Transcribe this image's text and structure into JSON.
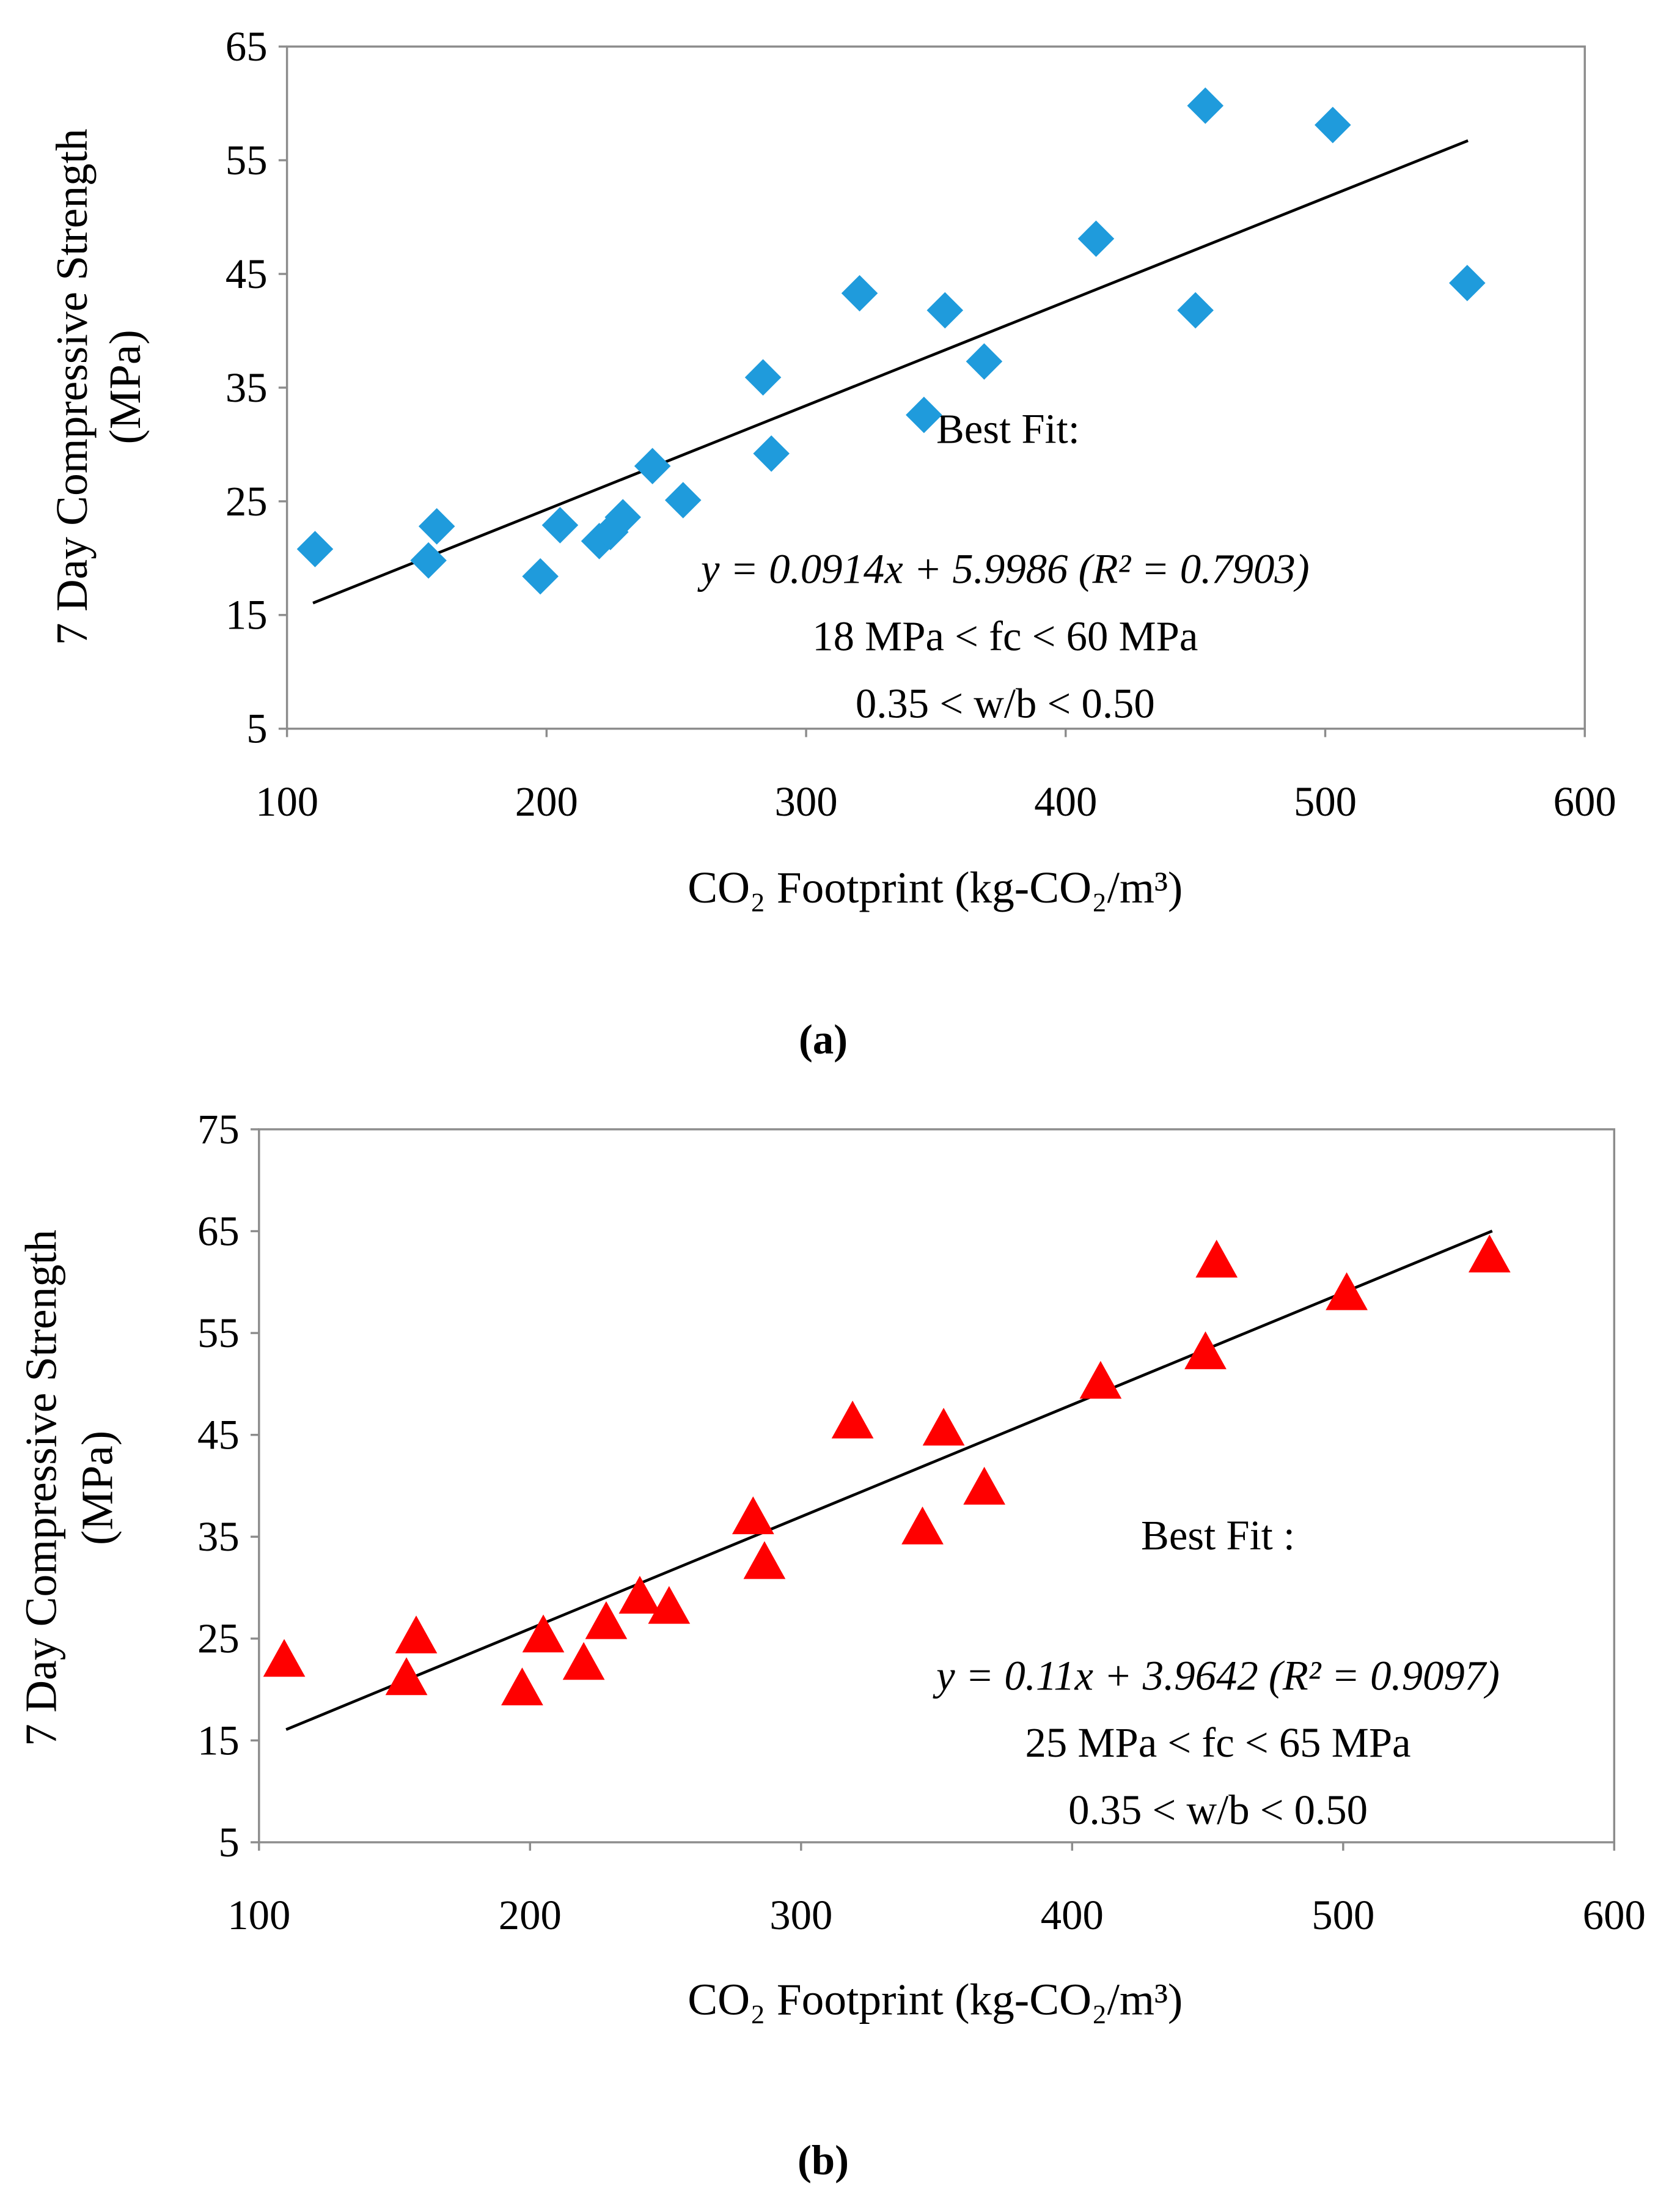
{
  "chart_data": [
    {
      "type": "scatter",
      "panel_label": "a",
      "xlabel": "CO₂ Footprint (kg-CO₂/m³)",
      "ylabel_line1": "7 Day Compressive Strength",
      "ylabel_line2": "(MPa)",
      "xlim": [
        100,
        600
      ],
      "ylim": [
        5,
        65
      ],
      "xticks": [
        100,
        200,
        300,
        400,
        500,
        600
      ],
      "yticks": [
        5,
        15,
        25,
        35,
        45,
        55,
        65
      ],
      "marker": "diamond",
      "color": "#1f9bdc",
      "points": [
        [
          110.8,
          20.8
        ],
        [
          154.5,
          19.8
        ],
        [
          157.7,
          22.8
        ],
        [
          197.6,
          18.4
        ],
        [
          205.2,
          22.9
        ],
        [
          220.3,
          21.5
        ],
        [
          224.6,
          22.3
        ],
        [
          229.4,
          23.6
        ],
        [
          240.8,
          28.1
        ],
        [
          252.6,
          25.1
        ],
        [
          283.4,
          35.9
        ],
        [
          286.6,
          29.2
        ],
        [
          320.6,
          43.3
        ],
        [
          345.4,
          32.6
        ],
        [
          353.5,
          41.8
        ],
        [
          368.6,
          37.3
        ],
        [
          411.7,
          48.1
        ],
        [
          450.0,
          41.8
        ],
        [
          453.8,
          59.8
        ],
        [
          502.9,
          58.1
        ],
        [
          554.7,
          44.2
        ]
      ],
      "fit": {
        "slope": 0.0914,
        "intercept": 5.9986,
        "x_range": [
          110,
          555
        ]
      },
      "annotation": {
        "title": "Best  Fit:",
        "equation": "y = 0.0914x + 5.9986 (R² = 0.7903)",
        "range": "18 MPa < fc  < 60 MPa",
        "wb": "0.35 < w/b < 0.50"
      },
      "caption": "(a)"
    },
    {
      "type": "scatter",
      "panel_label": "b",
      "xlabel": "CO₂ Footprint (kg-CO₂/m³)",
      "ylabel_line1": "7 Day Compressive Strength",
      "ylabel_line2": "(MPa)",
      "xlim": [
        100,
        600
      ],
      "ylim": [
        5,
        75
      ],
      "xticks": [
        100,
        200,
        300,
        400,
        500,
        600
      ],
      "yticks": [
        5,
        15,
        25,
        35,
        45,
        55,
        65,
        75
      ],
      "marker": "triangle",
      "color": "#ff0000",
      "points": [
        [
          109.3,
          22.9
        ],
        [
          154.4,
          21.1
        ],
        [
          158.0,
          25.2
        ],
        [
          197.1,
          20.1
        ],
        [
          204.9,
          25.3
        ],
        [
          219.8,
          22.6
        ],
        [
          228.1,
          26.6
        ],
        [
          240.5,
          29.1
        ],
        [
          251.3,
          28.1
        ],
        [
          282.3,
          36.9
        ],
        [
          286.5,
          32.5
        ],
        [
          319.0,
          46.3
        ],
        [
          344.8,
          35.9
        ],
        [
          352.6,
          45.6
        ],
        [
          367.6,
          39.8
        ],
        [
          410.5,
          50.2
        ],
        [
          449.2,
          53.1
        ],
        [
          453.3,
          62.1
        ],
        [
          501.3,
          58.9
        ],
        [
          554.0,
          62.6
        ]
      ],
      "fit": {
        "slope": 0.11,
        "intercept": 3.9642,
        "x_range": [
          110,
          555
        ]
      },
      "annotation": {
        "title": "Best Fit :",
        "equation": "y = 0.11x + 3.9642 (R² = 0.9097)",
        "range": "25 MPa < fc  < 65 MPa",
        "wb": "0.35 < w/b < 0.50"
      },
      "caption": "(b)"
    }
  ]
}
